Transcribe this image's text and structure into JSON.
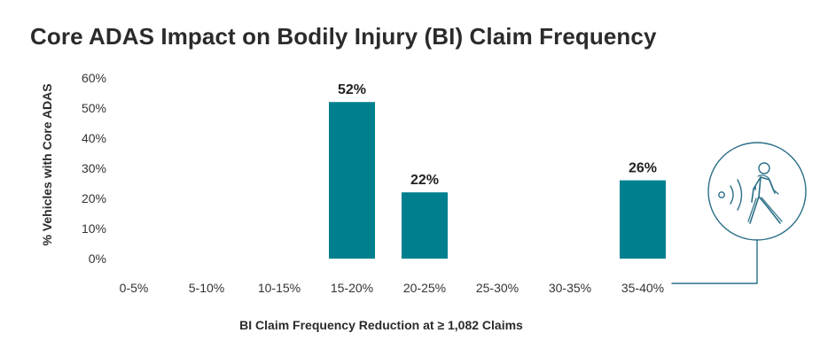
{
  "title": "Core ADAS Impact on Bodily Injury (BI) Claim Frequency",
  "icon": "pedestrian-sensor-icon",
  "colors": {
    "bar": "#00808f",
    "icon_stroke": "#2a6e86",
    "text": "#2b2b2b"
  },
  "chart_data": {
    "type": "bar",
    "title": "Core ADAS Impact on Bodily Injury (BI) Claim Frequency",
    "xlabel": "BI Claim Frequency Reduction at ≥ 1,082 Claims",
    "ylabel": "% Vehicles with Core ADAS",
    "categories": [
      "0-5%",
      "5-10%",
      "10-15%",
      "15-20%",
      "20-25%",
      "25-30%",
      "30-35%",
      "35-40%"
    ],
    "values": [
      0,
      0,
      0,
      52,
      22,
      0,
      0,
      26
    ],
    "data_labels": [
      "",
      "",
      "",
      "52%",
      "22%",
      "",
      "",
      "26%"
    ],
    "ylim": [
      0,
      60
    ],
    "yticks": [
      0,
      10,
      20,
      30,
      40,
      50,
      60
    ],
    "ytick_labels": [
      "0%",
      "10%",
      "20%",
      "30%",
      "40%",
      "50%",
      "60%"
    ],
    "grid": false,
    "legend": "none"
  }
}
